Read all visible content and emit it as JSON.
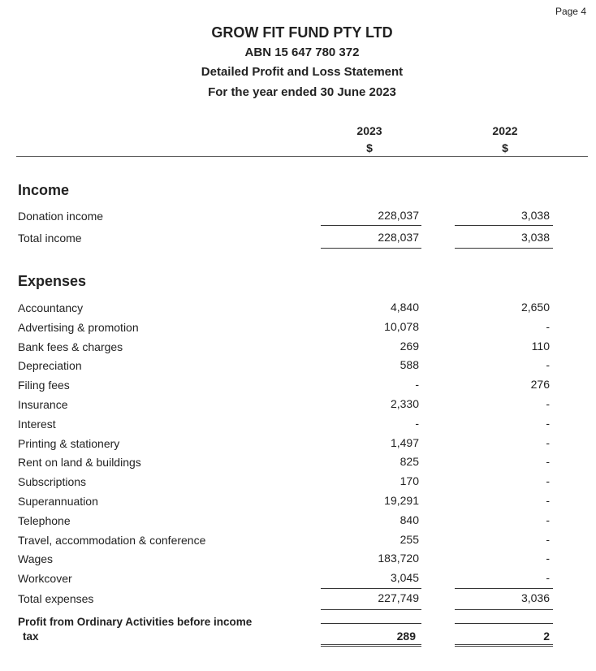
{
  "page_label": "Page 4",
  "header": {
    "company": "GROW FIT FUND PTY LTD",
    "abn": "ABN 15 647 780 372",
    "title": "Detailed Profit and Loss Statement",
    "period": "For the year ended 30 June 2023"
  },
  "columns": [
    {
      "year": "2023",
      "unit": "$"
    },
    {
      "year": "2022",
      "unit": "$"
    }
  ],
  "income": {
    "heading": "Income",
    "rows": [
      {
        "label": "Donation income",
        "v2023": "228,037",
        "v2022": "3,038"
      }
    ],
    "total": {
      "label": "Total income",
      "v2023": "228,037",
      "v2022": "3,038"
    }
  },
  "expenses": {
    "heading": "Expenses",
    "rows": [
      {
        "label": "Accountancy",
        "v2023": "4,840",
        "v2022": "2,650"
      },
      {
        "label": "Advertising & promotion",
        "v2023": "10,078",
        "v2022": "-"
      },
      {
        "label": "Bank fees & charges",
        "v2023": "269",
        "v2022": "110"
      },
      {
        "label": "Depreciation",
        "v2023": "588",
        "v2022": "-"
      },
      {
        "label": "Filing fees",
        "v2023": "-",
        "v2022": "276"
      },
      {
        "label": "Insurance",
        "v2023": "2,330",
        "v2022": "-"
      },
      {
        "label": "Interest",
        "v2023": "-",
        "v2022": "-"
      },
      {
        "label": "Printing & stationery",
        "v2023": "1,497",
        "v2022": "-"
      },
      {
        "label": "Rent on land & buildings",
        "v2023": "825",
        "v2022": "-"
      },
      {
        "label": "Subscriptions",
        "v2023": "170",
        "v2022": "-"
      },
      {
        "label": "Superannuation",
        "v2023": "19,291",
        "v2022": "-"
      },
      {
        "label": "Telephone",
        "v2023": "840",
        "v2022": "-"
      },
      {
        "label": "Travel, accommodation & conference",
        "v2023": "255",
        "v2022": "-"
      },
      {
        "label": "Wages",
        "v2023": "183,720",
        "v2022": "-"
      },
      {
        "label": "Workcover",
        "v2023": "3,045",
        "v2022": "-"
      }
    ],
    "total": {
      "label": "Total expenses",
      "v2023": "227,749",
      "v2022": "3,036"
    }
  },
  "profit": {
    "label_line1": "Profit from Ordinary Activities before income",
    "label_line2": "tax",
    "v2023": "289",
    "v2022": "2"
  }
}
